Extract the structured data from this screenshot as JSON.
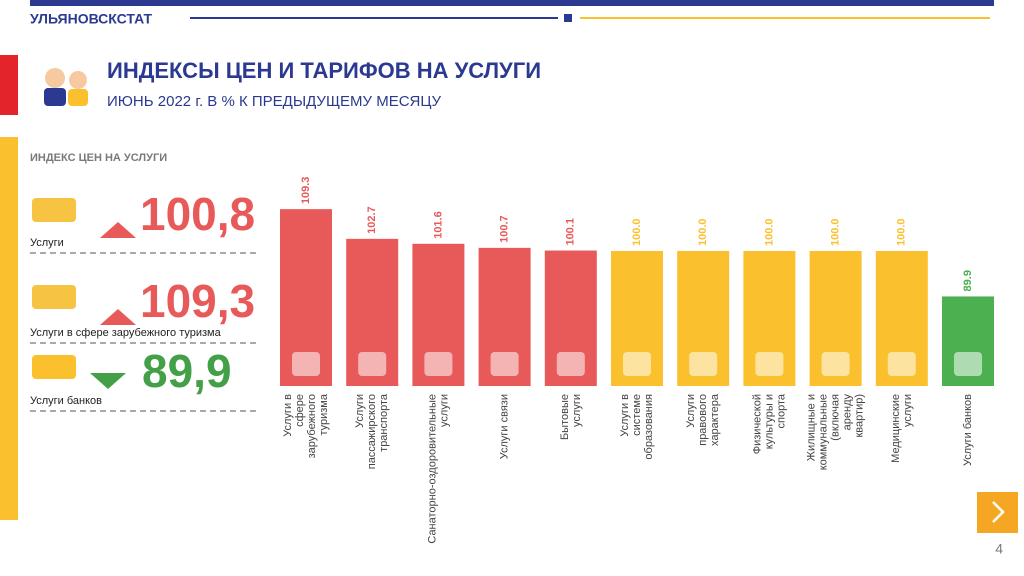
{
  "header": {
    "org": "УЛЬЯНОВСКСТАТ",
    "page_number": "4"
  },
  "title": "ИНДЕКСЫ ЦЕН И ТАРИФОВ НА УСЛУГИ",
  "subtitle": "ИЮНЬ 2022 г. В % К ПРЕДЫДУЩЕМУ МЕСЯЦУ",
  "panel": {
    "title": "ИНДЕКС ЦЕН НА УСЛУГИ",
    "items": [
      {
        "label": "Услуги",
        "value": 100.8,
        "value_label": "100,8",
        "trend": "up",
        "color": "#e85a5a"
      },
      {
        "label": "Услуги  в сфере зарубежного  туризма",
        "value": 109.3,
        "value_label": "109,3",
        "trend": "up",
        "color": "#e85a5a"
      },
      {
        "label": "Услуги банков",
        "value": 89.9,
        "value_label": "89,9",
        "trend": "down",
        "color": "#43a047"
      }
    ]
  },
  "chart_data": {
    "type": "bar",
    "categories": [
      "Услуги в сфере зарубежного туризма",
      "Услуги пассажирского транспорта",
      "Санаторно-оздоровительные услуги",
      "Услуги связи",
      "Бытовые услуги",
      "Услуги в системе образования",
      "Услуги правового характера",
      "Физической культуры и спорта",
      "Жилищные и коммунальные (включая аренду квартир)",
      "Медицинские услуги",
      "Услуги банков"
    ],
    "values": [
      109.3,
      102.7,
      101.6,
      100.7,
      100.1,
      100,
      100,
      100,
      100,
      100,
      89.9
    ],
    "value_labels": [
      "109.3",
      "102.7",
      "101.6",
      "100.7",
      "100.1",
      "100.0",
      "100.0",
      "100.0",
      "100.0",
      "100.0",
      "89.9"
    ],
    "colors": [
      "#e85a5a",
      "#e85a5a",
      "#e85a5a",
      "#e85a5a",
      "#e85a5a",
      "#fbc02d",
      "#fbc02d",
      "#fbc02d",
      "#fbc02d",
      "#fbc02d",
      "#4caf50"
    ],
    "ylim": [
      70,
      118
    ]
  }
}
